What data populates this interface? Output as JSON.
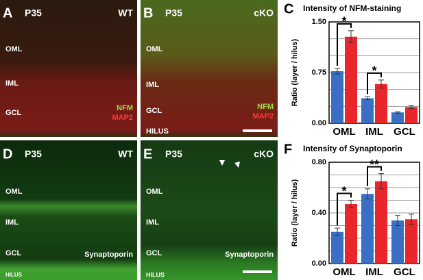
{
  "panels": [
    {
      "letter": "A",
      "age": "P35",
      "genotype": "WT",
      "layers": [
        "OML",
        "IML",
        "GCL"
      ],
      "stains": [
        "NFM",
        "MAP2"
      ]
    },
    {
      "letter": "B",
      "age": "P35",
      "genotype": "cKO",
      "layers": [
        "OML",
        "IML",
        "GCL",
        "HILUS"
      ],
      "stains": [
        "NFM",
        "MAP2"
      ]
    },
    {
      "letter": "D",
      "age": "P35",
      "genotype": "WT",
      "layers": [
        "OML",
        "IML",
        "GCL",
        "HILUS"
      ],
      "stains": [
        "Synaptoporin"
      ]
    },
    {
      "letter": "E",
      "age": "P35",
      "genotype": "cKO",
      "layers": [
        "OML",
        "IML",
        "GCL",
        "HILUS"
      ],
      "stains": [
        "Synaptoporin"
      ]
    }
  ],
  "chart_data": [
    {
      "type": "bar",
      "panel": "C",
      "title": "Intensity of NFM-staining",
      "y_label": "Ratio (layer / hilus)",
      "categories": [
        "OML",
        "IML",
        "GCL"
      ],
      "series": [
        {
          "color": "#3b6fc4",
          "values": [
            0.77,
            0.37,
            0.16
          ],
          "errors": [
            0.04,
            0.02,
            0.01
          ]
        },
        {
          "color": "#e8262b",
          "values": [
            1.28,
            0.58,
            0.24
          ],
          "errors": [
            0.09,
            0.06,
            0.02
          ]
        }
      ],
      "significance": [
        "*",
        "*",
        null
      ],
      "ylim": [
        0,
        1.5
      ],
      "yticks": [
        {
          "value": 0,
          "label": "0.00"
        },
        {
          "value": 0.75,
          "label": "0.75"
        },
        {
          "value": 1.5,
          "label": "1.50"
        }
      ],
      "minor_yticks": [
        0.25,
        0.5,
        1,
        1.25
      ],
      "grid": true
    },
    {
      "type": "bar",
      "panel": "F",
      "title": "Intensity of Synaptoporin",
      "y_label": "Ratio (layer / hilus)",
      "categories": [
        "OML",
        "IML",
        "GCL"
      ],
      "series": [
        {
          "color": "#3b6fc4",
          "values": [
            0.25,
            0.55,
            0.34
          ],
          "errors": [
            0.03,
            0.04,
            0.04
          ]
        },
        {
          "color": "#e8262b",
          "values": [
            0.47,
            0.65,
            0.35
          ],
          "errors": [
            0.03,
            0.06,
            0.04
          ]
        }
      ],
      "significance": [
        "*",
        "**",
        null
      ],
      "ylim": [
        0,
        0.8
      ],
      "yticks": [
        {
          "value": 0,
          "label": "0.00"
        },
        {
          "value": 0.4,
          "label": "0.40"
        },
        {
          "value": 0.8,
          "label": "0.80"
        }
      ],
      "minor_yticks": [
        0.1,
        0.2,
        0.3,
        0.5,
        0.6,
        0.7
      ],
      "grid": true
    }
  ]
}
